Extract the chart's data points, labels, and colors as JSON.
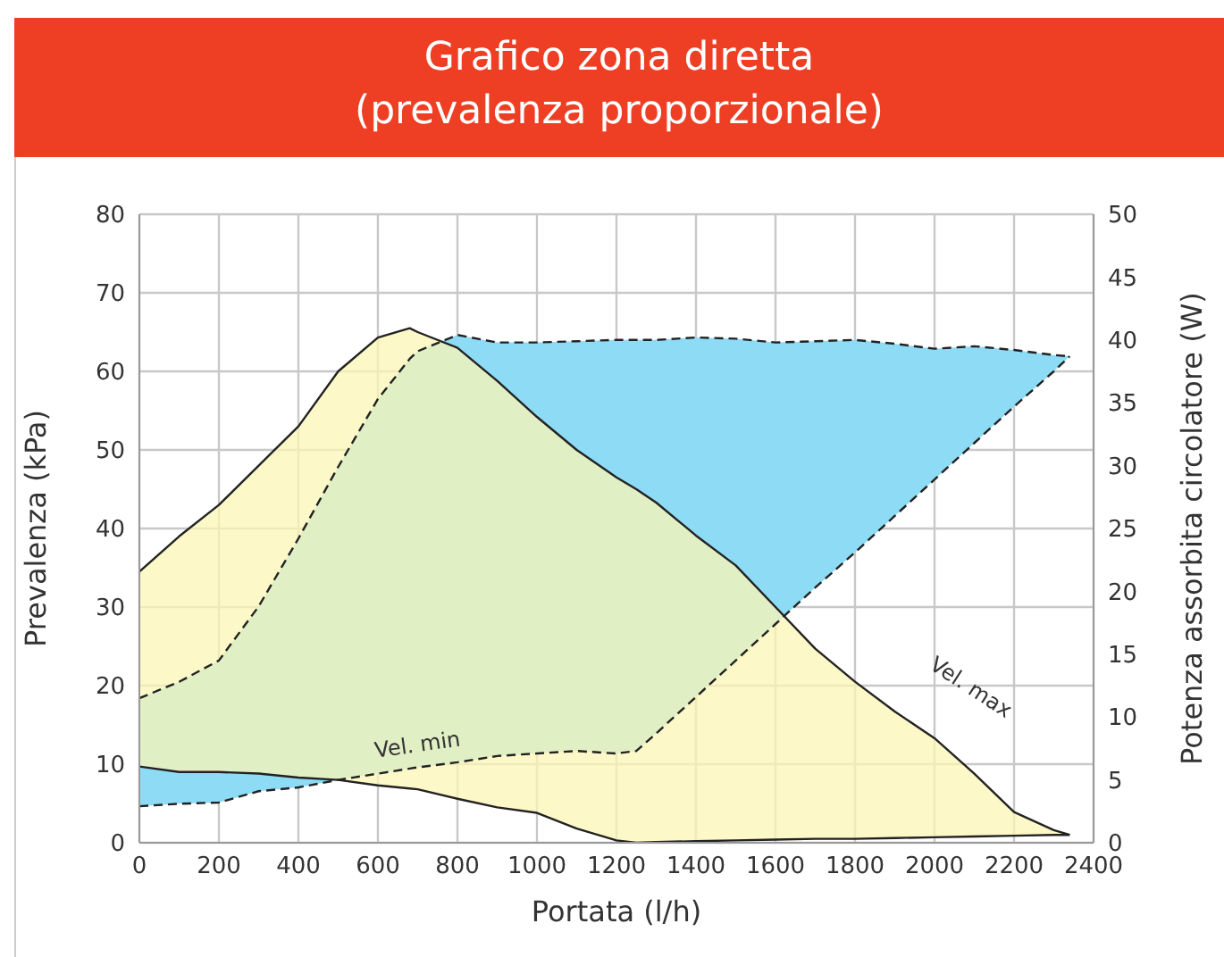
{
  "chart_data": {
    "type": "line",
    "title": "Grafico zona diretta",
    "subtitle": "(prevalenza proporzionale)",
    "xlabel": "Portata (l/h)",
    "ylabel": "Prevalenza (kPa)",
    "y2label": "Potenza assorbita circolatore (W)",
    "x": [
      0,
      100,
      200,
      300,
      400,
      500,
      600,
      680,
      700,
      800,
      900,
      1000,
      1100,
      1200,
      1250,
      1300,
      1400,
      1500,
      1600,
      1700,
      1800,
      1900,
      2000,
      2100,
      2200,
      2300,
      2340
    ],
    "series": [
      {
        "type": "area",
        "axis": "y2",
        "color": "#8edbf5",
        "line_style": "dashed",
        "values": [
          11.5,
          12.8,
          14.5,
          18.8,
          24.2,
          29.9,
          35.3,
          38.5,
          39.1,
          40.4,
          39.8,
          39.8,
          39.9,
          40,
          40,
          40,
          40.2,
          40.1,
          39.8,
          39.9,
          40,
          39.7,
          39.3,
          39.5,
          39.2,
          38.8,
          38.7
        ]
      },
      {
        "axis": "y2",
        "color": "#222222",
        "line_style": "dashed",
        "values": [
          2.9,
          3.1,
          3.2,
          4.1,
          4.4,
          5,
          5.5,
          5.9,
          6,
          6.4,
          6.9,
          7.1,
          7.3,
          7.1,
          7.3,
          8.7,
          11.6,
          14.5,
          17.4,
          20.3,
          23.1,
          26,
          28.9,
          31.8,
          34.7,
          37.5,
          38.7
        ]
      },
      {
        "type": "area",
        "color": "#fcf5b4",
        "line_style": "solid",
        "values": [
          34.5,
          39,
          43,
          48,
          53,
          60,
          64.3,
          65.5,
          65,
          63,
          58.8,
          54.2,
          50,
          46.5,
          45,
          43.3,
          39.1,
          35.3,
          30,
          24.7,
          20.5,
          16.7,
          13.3,
          8.8,
          3.9,
          1.6,
          1
        ]
      },
      {
        "color": "#222222",
        "line_style": "solid",
        "values": [
          9.7,
          9,
          9,
          8.8,
          8.3,
          8,
          7.3,
          6.9,
          6.8,
          5.6,
          4.5,
          3.8,
          1.8,
          0.3,
          0,
          0.1,
          0.2,
          0.3,
          0.4,
          0.5,
          0.5,
          0.6,
          0.7,
          0.8,
          0.9,
          1,
          1
        ]
      }
    ],
    "xlim": [
      0,
      2400
    ],
    "xticks": [
      0,
      200,
      400,
      600,
      800,
      1000,
      1200,
      1400,
      1600,
      1800,
      2000,
      2200,
      2400
    ],
    "ylim": [
      0,
      80
    ],
    "yticks": [
      0,
      10,
      20,
      30,
      40,
      50,
      60,
      70,
      80
    ],
    "y2lim": [
      0,
      50
    ],
    "y2ticks": [
      0,
      5,
      10,
      15,
      20,
      25,
      30,
      35,
      40,
      45,
      50
    ],
    "annotations": [
      {
        "text": "Vel. min",
        "x": 700,
        "y": 9.6
      },
      {
        "text": "Vel. max",
        "x": 2000,
        "y": 13.3
      }
    ],
    "grid": true
  }
}
